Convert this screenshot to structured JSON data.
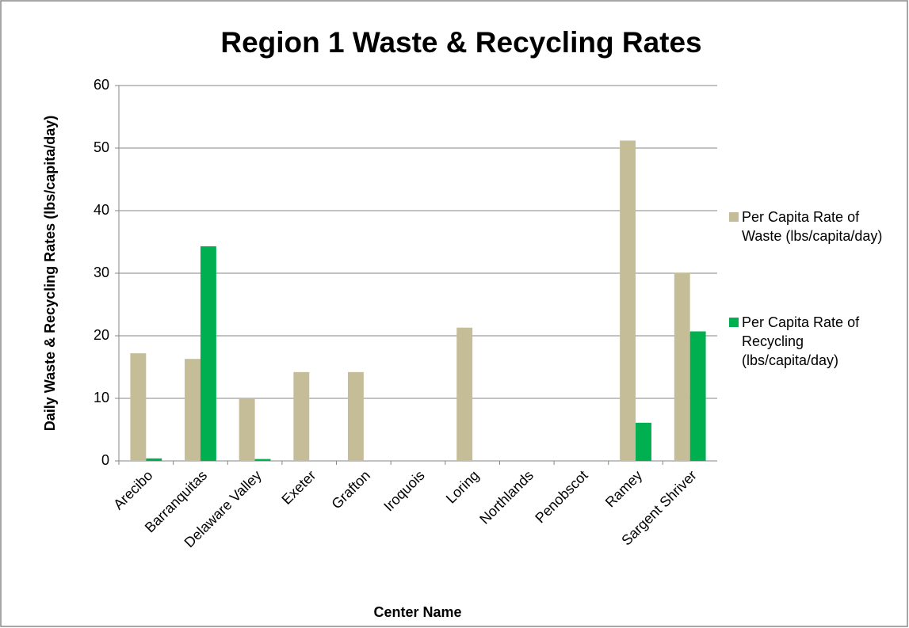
{
  "chart_data": {
    "type": "bar",
    "title": "Region 1 Waste & Recycling Rates",
    "x_label": "Center Name",
    "y_label": "Daily Waste & Recycling Rates (lbs/capita/day)",
    "categories": [
      "Arecibo",
      "Barranquitas",
      "Delaware Valley",
      "Exeter",
      "Grafton",
      "Iroquois",
      "Loring",
      "Northlands",
      "Penobscot",
      "Ramey",
      "Sargent Shriver"
    ],
    "series": [
      {
        "name": "Per Capita Rate of Waste (lbs/capita/day)",
        "color": "#c4bd97",
        "values": [
          17.2,
          16.3,
          10,
          14.2,
          14.2,
          0,
          21.3,
          0,
          0,
          51.2,
          30.1
        ]
      },
      {
        "name": "Per Capita Rate of Recycling (lbs/capita/day)",
        "color": "#00b050",
        "values": [
          0.4,
          34.3,
          0.3,
          0,
          0,
          0,
          0,
          0,
          0,
          6.1,
          20.7
        ]
      }
    ],
    "ylim": [
      0,
      60
    ],
    "yticks": [
      0,
      10,
      20,
      30,
      40,
      50,
      60
    ],
    "grid": true,
    "legend": "right"
  }
}
